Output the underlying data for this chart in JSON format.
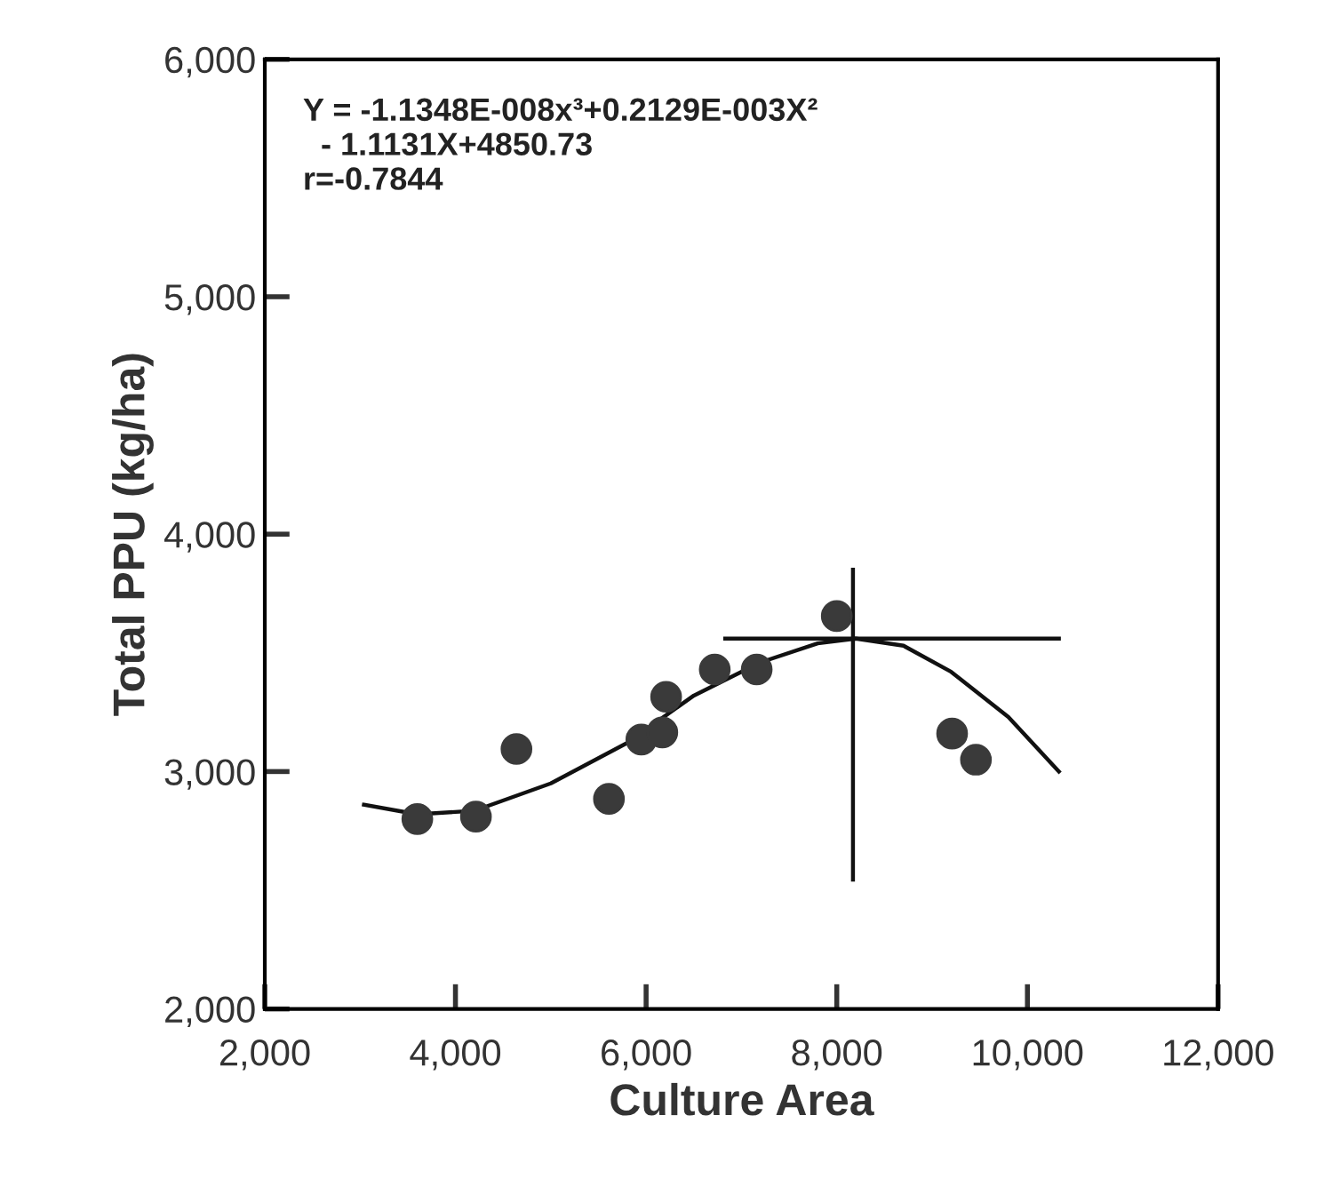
{
  "chart_data": {
    "type": "scatter",
    "xlabel": "Culture Area",
    "ylabel": "Total PPU (kg/ha)",
    "annotations": [
      "Y = -1.1348E-008x³+0.2129E-003X²\n  - 1.1131X+4850.73\nr=-0.7844"
    ],
    "xlim": [
      2000,
      12000
    ],
    "xticks": [
      {
        "value": 2000,
        "label": "2,000"
      },
      {
        "value": 4000,
        "label": "4,000"
      },
      {
        "value": 6000,
        "label": "6,000"
      },
      {
        "value": 8000,
        "label": "8,000"
      },
      {
        "value": 10000,
        "label": "10,000"
      },
      {
        "value": 12000,
        "label": "12,000"
      }
    ],
    "ylim": [
      2000,
      6000
    ],
    "yticks": [
      {
        "value": 2000,
        "label": "2,000"
      },
      {
        "value": 3000,
        "label": "3,000"
      },
      {
        "value": 4000,
        "label": "4,000"
      },
      {
        "value": 5000,
        "label": "5,000"
      },
      {
        "value": 6000,
        "label": "6,000"
      }
    ],
    "grid": false,
    "series": [
      {
        "marker": "circle",
        "color": "#3a3a3a",
        "x": [
          3600,
          4215,
          4640,
          5610,
          5950,
          6170,
          6210,
          6720,
          7160,
          8000,
          9210,
          9460
        ],
        "values": [
          2800,
          2810,
          3095,
          2885,
          3135,
          3165,
          3315,
          3430,
          3430,
          3655,
          3160,
          3050
        ]
      },
      {
        "type": "line",
        "color": "#111111",
        "x": [
          3040,
          3600,
          4200,
          5000,
          5800,
          6500,
          7200,
          7800,
          8200,
          8700,
          9200,
          9800,
          10330
        ],
        "values": [
          2860,
          2820,
          2835,
          2950,
          3120,
          3320,
          3460,
          3540,
          3560,
          3530,
          3420,
          3230,
          3000
        ]
      },
      {
        "type": "line",
        "color": "#111111",
        "x": [
          6830,
          10330
        ],
        "values": [
          3560,
          3560
        ]
      },
      {
        "type": "line",
        "color": "#111111",
        "x": [
          8170,
          8170
        ],
        "values": [
          3850,
          2545
        ]
      }
    ]
  }
}
